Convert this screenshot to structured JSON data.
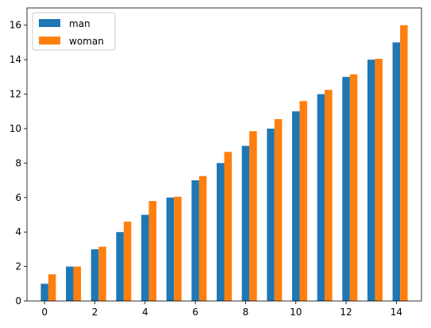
{
  "chart_data": {
    "type": "bar",
    "x": [
      0,
      1,
      2,
      3,
      4,
      5,
      6,
      7,
      8,
      9,
      10,
      11,
      12,
      13,
      14
    ],
    "series": [
      {
        "name": "man",
        "color": "#1f77b4",
        "values": [
          1,
          2,
          3,
          4,
          5,
          6,
          7,
          8,
          9,
          10,
          11,
          12,
          13,
          14,
          15
        ]
      },
      {
        "name": "woman",
        "color": "#ff7f0e",
        "values": [
          1.55,
          2.0,
          3.15,
          4.6,
          5.8,
          6.05,
          7.25,
          8.65,
          9.85,
          10.55,
          11.6,
          12.25,
          13.15,
          14.05,
          16.0
        ]
      }
    ],
    "xlim": [
      -0.7,
      15.0
    ],
    "ylim": [
      0,
      17
    ],
    "xticks": [
      0,
      2,
      4,
      6,
      8,
      10,
      12,
      14
    ],
    "yticks": [
      0,
      2,
      4,
      6,
      8,
      10,
      12,
      14,
      16
    ],
    "bar_width": 0.3,
    "grid": false,
    "legend_position": "upper-left",
    "title": "",
    "xlabel": "",
    "ylabel": ""
  }
}
